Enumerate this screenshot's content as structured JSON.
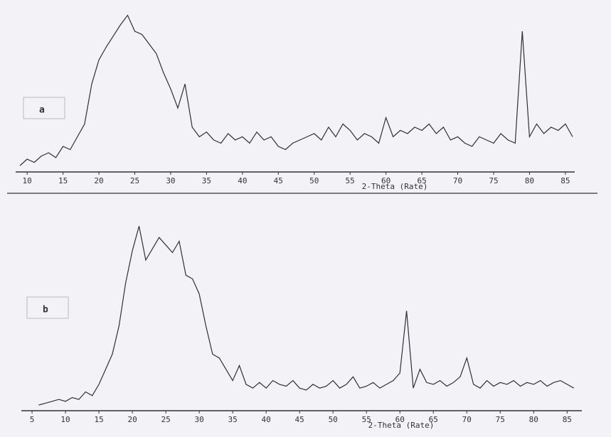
{
  "chart_data": [
    {
      "type": "line",
      "label": "a",
      "xlabel": "2-Theta (Rate)",
      "color": "#2f2f35",
      "xlim": [
        8.4,
        86.3
      ],
      "ylim": [
        0,
        100
      ],
      "xticks": [
        10,
        15,
        20,
        25,
        30,
        35,
        40,
        45,
        50,
        55,
        60,
        65,
        70,
        75,
        80,
        85
      ],
      "x": [
        9,
        10,
        11,
        12,
        13,
        14,
        15,
        16,
        17,
        18,
        19,
        20,
        21,
        22,
        23,
        24,
        25,
        26,
        27,
        28,
        29,
        30,
        31,
        32,
        33,
        34,
        35,
        36,
        37,
        38,
        39,
        40,
        41,
        42,
        43,
        44,
        45,
        46,
        47,
        48,
        49,
        50,
        51,
        52,
        53,
        54,
        55,
        56,
        57,
        58,
        59,
        60,
        61,
        62,
        63,
        64,
        65,
        66,
        67,
        68,
        69,
        70,
        71,
        72,
        73,
        74,
        75,
        76,
        77,
        78,
        79,
        80,
        81,
        82,
        83,
        84,
        85,
        86
      ],
      "values": [
        4,
        8,
        6,
        10,
        12,
        9,
        16,
        14,
        22,
        30,
        55,
        70,
        78,
        85,
        92,
        98,
        88,
        86,
        80,
        74,
        62,
        52,
        40,
        55,
        28,
        22,
        25,
        20,
        18,
        24,
        20,
        22,
        18,
        25,
        20,
        22,
        16,
        14,
        18,
        20,
        22,
        24,
        20,
        28,
        22,
        30,
        26,
        20,
        24,
        22,
        18,
        34,
        22,
        26,
        24,
        28,
        26,
        30,
        24,
        28,
        20,
        22,
        18,
        16,
        22,
        20,
        18,
        24,
        20,
        18,
        88,
        22,
        30,
        24,
        28,
        26,
        30,
        22
      ]
    },
    {
      "type": "line",
      "label": "b",
      "xlabel": "2-Theta (Rate)",
      "color": "#2f2f35",
      "xlim": [
        3.4,
        87.2
      ],
      "ylim": [
        0,
        100
      ],
      "xticks": [
        5,
        10,
        15,
        20,
        25,
        30,
        35,
        40,
        45,
        50,
        55,
        60,
        65,
        70,
        75,
        80,
        85
      ],
      "x": [
        6,
        7,
        8,
        9,
        10,
        11,
        12,
        13,
        14,
        15,
        16,
        17,
        18,
        19,
        20,
        21,
        22,
        23,
        24,
        25,
        26,
        27,
        28,
        29,
        30,
        31,
        32,
        33,
        34,
        35,
        36,
        37,
        38,
        39,
        40,
        41,
        42,
        43,
        44,
        45,
        46,
        47,
        48,
        49,
        50,
        51,
        52,
        53,
        54,
        55,
        56,
        57,
        58,
        59,
        60,
        61,
        62,
        63,
        64,
        65,
        66,
        67,
        68,
        69,
        70,
        71,
        72,
        73,
        74,
        75,
        76,
        77,
        78,
        79,
        80,
        81,
        82,
        83,
        84,
        85,
        86
      ],
      "values": [
        3,
        4,
        5,
        6,
        5,
        7,
        6,
        10,
        8,
        14,
        22,
        30,
        45,
        68,
        85,
        98,
        80,
        86,
        92,
        88,
        84,
        90,
        72,
        70,
        62,
        45,
        30,
        28,
        22,
        16,
        24,
        14,
        12,
        15,
        12,
        16,
        14,
        13,
        16,
        12,
        11,
        14,
        12,
        13,
        16,
        12,
        14,
        18,
        12,
        13,
        15,
        12,
        14,
        16,
        20,
        53,
        12,
        22,
        15,
        14,
        16,
        13,
        15,
        18,
        28,
        14,
        12,
        16,
        13,
        15,
        14,
        16,
        13,
        15,
        14,
        16,
        13,
        15,
        16,
        14,
        12
      ]
    }
  ]
}
